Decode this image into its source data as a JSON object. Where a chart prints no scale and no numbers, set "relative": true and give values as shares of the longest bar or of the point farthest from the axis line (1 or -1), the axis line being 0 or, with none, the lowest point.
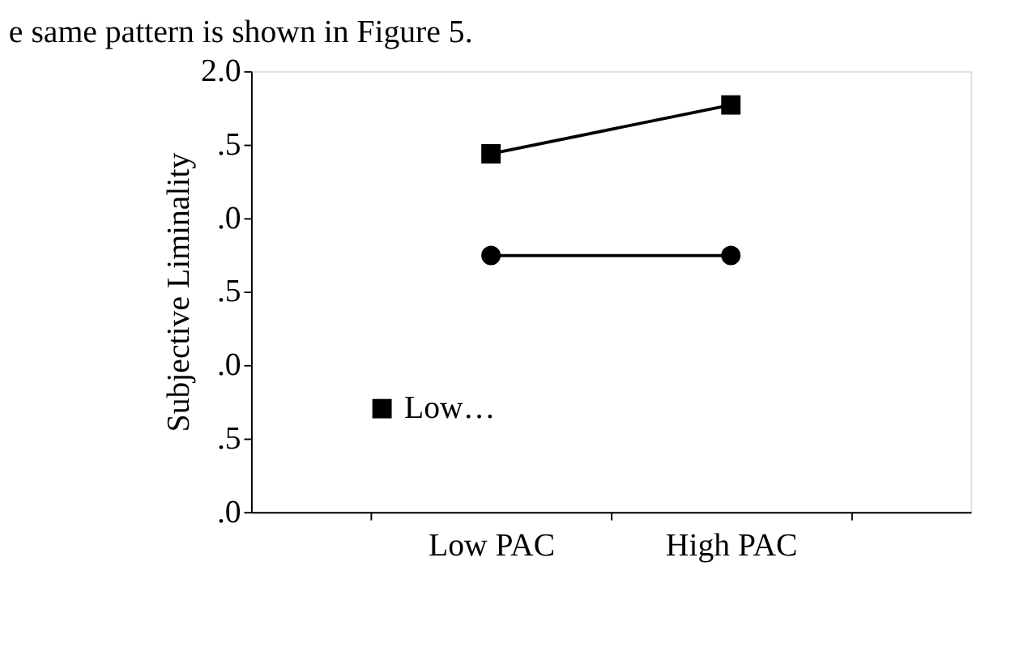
{
  "chart_data": {
    "type": "line",
    "relative": true,
    "ylabel": "Subjective Liminality",
    "categories": [
      "Low PAC",
      "High PAC"
    ],
    "series": [
      {
        "name": "Low…",
        "color": "#000000",
        "values": [
          0.88,
          1
        ],
        "marker": "square"
      },
      {
        "color": "#000000",
        "values": [
          0.63,
          0.63
        ],
        "marker": "circle"
      }
    ],
    "grid": false,
    "legend": "bottom left",
    "line_style": "solid",
    "annotations": [
      "e same pattern is shown in Figure 5.",
      ".0",
      ".5",
      ".0",
      ".5",
      ".0",
      ".5",
      "2.0"
    ]
  }
}
